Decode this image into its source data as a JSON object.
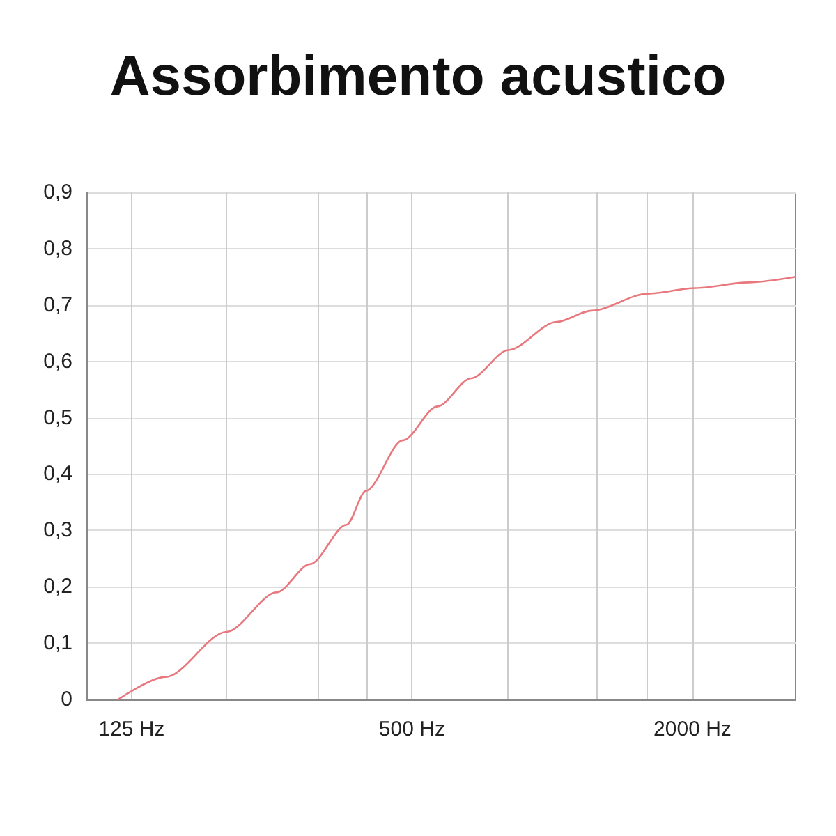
{
  "chart_data": {
    "type": "line",
    "title": "Assorbimento acustico",
    "log": "x",
    "color": "#e8787e",
    "x": [
      117,
      148,
      200,
      256,
      302,
      362,
      398,
      478,
      567,
      670,
      805,
      1022,
      1215,
      1603,
      2034,
      2637,
      3330
    ],
    "values": [
      0,
      0.04,
      0.12,
      0.19,
      0.24,
      0.31,
      0.37,
      0.46,
      0.52,
      0.57,
      0.62,
      0.67,
      0.69,
      0.72,
      0.73,
      0.74,
      0.75
    ],
    "xlim": [
      100,
      3330
    ],
    "xticks": [
      {
        "value": 125,
        "label": "125 Hz"
      },
      {
        "value": 200,
        "label": null
      },
      {
        "value": 315,
        "label": null
      },
      {
        "value": 400,
        "label": null
      },
      {
        "value": 500,
        "label": "500 Hz"
      },
      {
        "value": 800,
        "label": null
      },
      {
        "value": 1250,
        "label": null
      },
      {
        "value": 1600,
        "label": null
      },
      {
        "value": 2000,
        "label": "2000 Hz"
      }
    ],
    "ylim": [
      0,
      0.9
    ],
    "yticks": [
      {
        "value": 0,
        "label": "0"
      },
      {
        "value": 0.1,
        "label": "0,1"
      },
      {
        "value": 0.2,
        "label": "0,2"
      },
      {
        "value": 0.3,
        "label": "0,3"
      },
      {
        "value": 0.4,
        "label": "0,4"
      },
      {
        "value": 0.5,
        "label": "0,5"
      },
      {
        "value": 0.6,
        "label": "0,6"
      },
      {
        "value": 0.7,
        "label": "0,7"
      },
      {
        "value": 0.8,
        "label": "0,8"
      },
      {
        "value": 0.9,
        "label": "0,9"
      }
    ],
    "grid": true,
    "marker": "none",
    "line_style": "solid"
  }
}
